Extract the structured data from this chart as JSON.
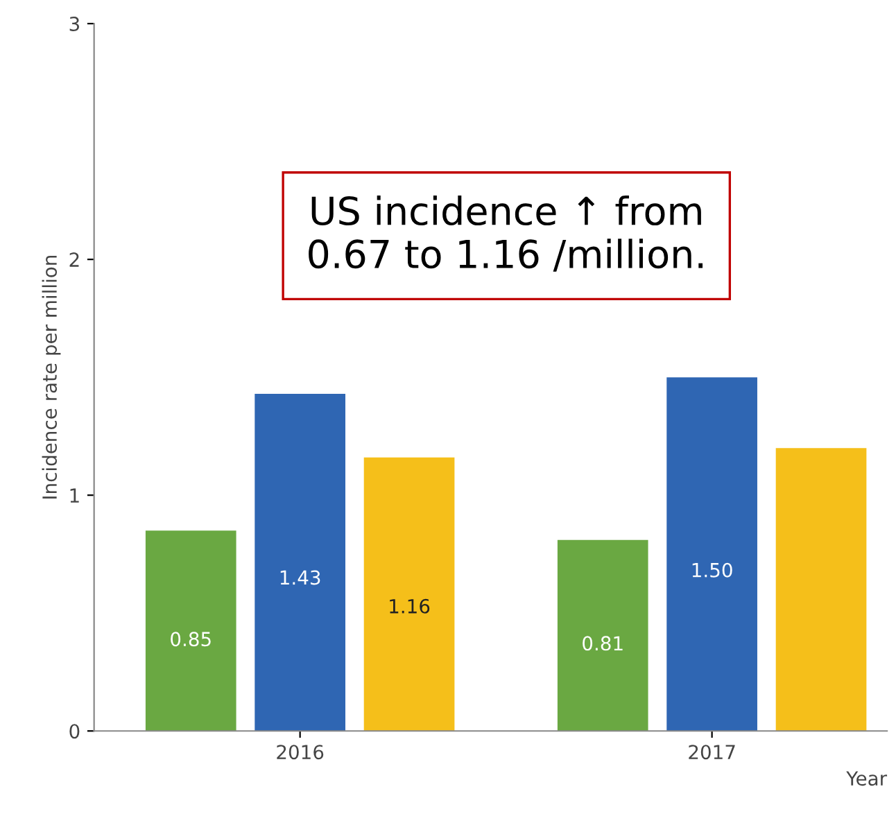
{
  "chart_data": {
    "type": "bar",
    "xlabel": "Year",
    "ylabel": "Incidence rate per million",
    "categories": [
      "2016",
      "2017"
    ],
    "series": [
      {
        "color": "#6aa842",
        "values": [
          0.85,
          0.81
        ],
        "value_labels": [
          "0.85",
          "0.81"
        ]
      },
      {
        "color": "#2f66b3",
        "values": [
          1.43,
          1.5
        ],
        "value_labels": [
          "1.43",
          "1.50"
        ]
      },
      {
        "color": "#f5bf1a",
        "values": [
          1.16,
          1.2
        ],
        "value_labels": [
          "1.16",
          null
        ]
      }
    ],
    "ylim": [
      0,
      3
    ],
    "yticks": [
      0,
      1,
      2,
      3
    ],
    "grid": false,
    "legend": false,
    "annotations": [
      "US incidence ↑ from\n0.67 to 1.16 /million."
    ]
  }
}
